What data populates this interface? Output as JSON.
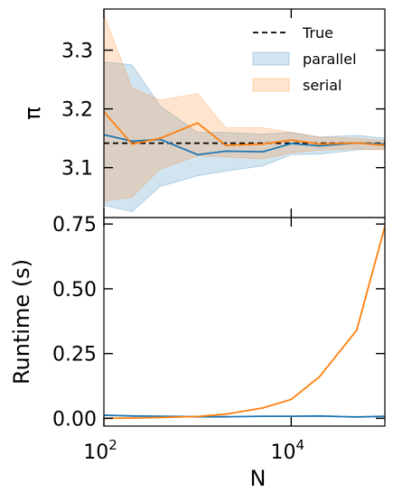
{
  "chart_data": [
    {
      "type": "line",
      "ylabel": "π",
      "xscale": "log",
      "xlim": [
        100,
        100000
      ],
      "ylim": [
        3.015,
        3.37
      ],
      "yticks": [
        3.1,
        3.2,
        3.3
      ],
      "ytick_labels": [
        "3.1",
        "3.2",
        "3.3"
      ],
      "legend_placement": "top-right",
      "reference": {
        "name": "True",
        "value": 3.14159,
        "color": "#000000",
        "style": "dashed"
      },
      "x": [
        100,
        200,
        400,
        1000,
        2000,
        5000,
        10000,
        20000,
        50000,
        100000
      ],
      "series": [
        {
          "name": "parallel",
          "color": "#1f77b4",
          "values": [
            3.156,
            3.145,
            3.148,
            3.122,
            3.128,
            3.127,
            3.141,
            3.137,
            3.142,
            3.14
          ],
          "band_lower": [
            3.036,
            3.025,
            3.068,
            3.086,
            3.094,
            3.103,
            3.122,
            3.123,
            3.13,
            3.132
          ],
          "band_upper": [
            3.28,
            3.275,
            3.205,
            3.16,
            3.16,
            3.157,
            3.16,
            3.152,
            3.155,
            3.15
          ]
        },
        {
          "name": "serial",
          "color": "#ff7f0e",
          "values": [
            3.195,
            3.14,
            3.15,
            3.176,
            3.138,
            3.14,
            3.147,
            3.14,
            3.142,
            3.138
          ],
          "band_lower": [
            3.043,
            3.05,
            3.098,
            3.12,
            3.118,
            3.115,
            3.125,
            3.13,
            3.132,
            3.13
          ],
          "band_upper": [
            3.36,
            3.235,
            3.215,
            3.226,
            3.168,
            3.168,
            3.16,
            3.152,
            3.15,
            3.146
          ]
        }
      ]
    },
    {
      "type": "line",
      "xlabel": "N",
      "ylabel": "Runtime (s)",
      "xscale": "log",
      "xlim": [
        100,
        100000
      ],
      "ylim": [
        -0.03,
        0.775
      ],
      "yticks": [
        0.0,
        0.25,
        0.5,
        0.75
      ],
      "ytick_labels": [
        "0.00",
        "0.25",
        "0.50",
        "0.75"
      ],
      "xticks": [
        100,
        10000
      ],
      "xtick_labels": [
        {
          "base": "10",
          "exp": "2"
        },
        {
          "base": "10",
          "exp": "4"
        }
      ],
      "x": [
        100,
        200,
        400,
        1000,
        2000,
        5000,
        10000,
        20000,
        50000,
        100000
      ],
      "series": [
        {
          "name": "parallel",
          "color": "#1f77b4",
          "values": [
            0.012,
            0.009,
            0.008,
            0.006,
            0.006,
            0.008,
            0.008,
            0.009,
            0.005,
            0.008
          ]
        },
        {
          "name": "serial",
          "color": "#ff7f0e",
          "values": [
            0.0,
            0.001,
            0.003,
            0.007,
            0.016,
            0.04,
            0.073,
            0.16,
            0.34,
            0.74
          ]
        }
      ]
    }
  ]
}
